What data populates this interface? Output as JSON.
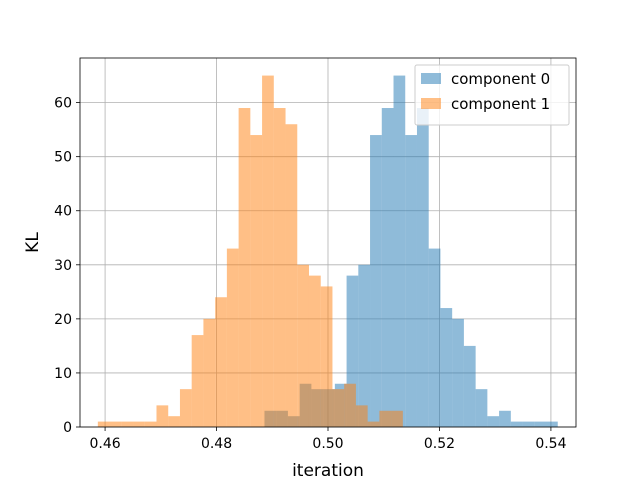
{
  "chart_data": {
    "type": "histogram",
    "title": "",
    "xlabel": "iteration",
    "ylabel": "KL",
    "xlim": [
      0.4555,
      0.5445
    ],
    "ylim": [
      0,
      68.25
    ],
    "xticks": [
      0.46,
      0.48,
      0.5,
      0.52,
      0.54
    ],
    "xtick_labels": [
      "0.46",
      "0.48",
      "0.50",
      "0.52",
      "0.54"
    ],
    "yticks": [
      0,
      10,
      20,
      30,
      40,
      50,
      60
    ],
    "ytick_labels": [
      "0",
      "10",
      "20",
      "30",
      "40",
      "50",
      "60"
    ],
    "grid": true,
    "legend_position": "top-right",
    "series": [
      {
        "name": "component 0",
        "color": "#1f77b4",
        "alpha": 0.5,
        "bin_start": 0.4886,
        "bin_width": 0.002105,
        "counts": [
          3,
          3,
          2,
          8,
          7,
          7,
          8,
          28,
          30,
          54,
          59,
          65,
          54,
          59,
          33,
          22,
          20,
          15,
          7,
          2,
          3,
          1,
          1,
          1,
          1
        ]
      },
      {
        "name": "component 1",
        "color": "#ff7f0e",
        "alpha": 0.5,
        "bin_start": 0.4587,
        "bin_width": 0.002105,
        "counts": [
          1,
          1,
          1,
          1,
          1,
          4,
          2,
          7,
          17,
          20,
          24,
          33,
          59,
          54,
          65,
          59,
          56,
          30,
          28,
          26,
          7,
          8,
          4,
          1,
          3,
          3
        ]
      }
    ]
  }
}
